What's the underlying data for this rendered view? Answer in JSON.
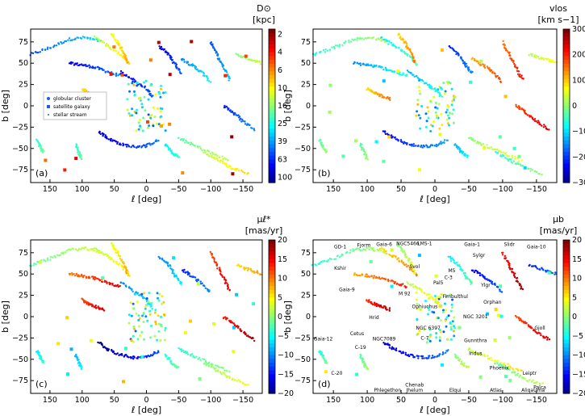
{
  "colormap": [
    "#00007f",
    "#0000ff",
    "#007fff",
    "#00ffff",
    "#7fff7f",
    "#ffff00",
    "#ff7f00",
    "#ff0000",
    "#7f0000"
  ],
  "axis_text": {
    "xlabel": "ℓ [deg]",
    "ylabel": "b [deg]"
  },
  "legend": {
    "placement": "center-left of panel (a)",
    "items": [
      {
        "label": "globular cluster",
        "marker": "circle"
      },
      {
        "label": "satellite galaxy",
        "marker": "square"
      },
      {
        "label": "stellar stream",
        "marker": "dot"
      }
    ]
  },
  "chart_data": [
    {
      "panel": "(a)",
      "type": "scatter",
      "quantity": "distance",
      "colorbar": {
        "title_line1": "D⊙",
        "title_line2": "[kpc]",
        "ticks": [
          "2",
          "4",
          "6",
          "10",
          "16",
          "25",
          "39",
          "63",
          "100"
        ],
        "scale": "log",
        "range": [
          1.3,
          100
        ]
      },
      "xlim": [
        180,
        -180
      ],
      "ylim": [
        -90,
        90
      ],
      "xticks": [
        "150",
        "100",
        "50",
        "0",
        "−50",
        "−100",
        "−150"
      ],
      "yticks": [
        "75",
        "50",
        "25",
        "0",
        "−25",
        "−50",
        "−75"
      ],
      "grid": false
    },
    {
      "panel": "(b)",
      "type": "scatter",
      "quantity": "line-of-sight velocity",
      "colorbar": {
        "title_line1": "vlos",
        "title_line2": "[km s−1]",
        "ticks": [
          "300",
          "200",
          "100",
          "0",
          "−100",
          "−200",
          "−300"
        ],
        "range": [
          -300,
          300
        ]
      },
      "xlim": [
        180,
        -180
      ],
      "ylim": [
        -90,
        90
      ],
      "xticks": [
        "150",
        "100",
        "50",
        "0",
        "−50",
        "−100",
        "−150"
      ],
      "yticks": [
        "75",
        "50",
        "25",
        "0",
        "−25",
        "−50",
        "−75"
      ],
      "grid": false
    },
    {
      "panel": "(c)",
      "type": "scatter",
      "quantity": "proper motion in l",
      "colorbar": {
        "title_line1": "μℓ*",
        "title_line2": "[mas/yr]",
        "ticks": [
          "20",
          "15",
          "10",
          "5",
          "0",
          "−5",
          "−10",
          "−15",
          "−20"
        ],
        "range": [
          -20,
          20
        ]
      },
      "xlim": [
        180,
        -180
      ],
      "ylim": [
        -90,
        90
      ],
      "xticks": [
        "150",
        "100",
        "50",
        "0",
        "−50",
        "−100",
        "−150"
      ],
      "yticks": [
        "75",
        "50",
        "25",
        "0",
        "−25",
        "−50",
        "−75"
      ],
      "grid": false
    },
    {
      "panel": "(d)",
      "type": "scatter",
      "quantity": "proper motion in b",
      "colorbar": {
        "title_line1": "μb",
        "title_line2": "[mas/yr]",
        "ticks": [
          "20",
          "15",
          "10",
          "5",
          "0",
          "−5",
          "−10",
          "−15",
          "−20"
        ],
        "range": [
          -20,
          20
        ]
      },
      "xlim": [
        180,
        -180
      ],
      "ylim": [
        -90,
        90
      ],
      "xticks": [
        "150",
        "100",
        "50",
        "0",
        "−50",
        "−100",
        "−150"
      ],
      "yticks": [
        "75",
        "50",
        "25",
        "0",
        "−25",
        "−50",
        "−75"
      ],
      "grid": false,
      "annotations": [
        {
          "text": "GD-1",
          "l": 140,
          "b": 80
        },
        {
          "text": "Fjorm",
          "l": 105,
          "b": 82
        },
        {
          "text": "Gaia-6",
          "l": 75,
          "b": 83
        },
        {
          "text": "NGC5466",
          "l": 40,
          "b": 84
        },
        {
          "text": "LMS-1",
          "l": 15,
          "b": 84
        },
        {
          "text": "Gaia-1",
          "l": -55,
          "b": 83
        },
        {
          "text": "Slidr",
          "l": -110,
          "b": 83
        },
        {
          "text": "Gaia-10",
          "l": -150,
          "b": 80
        },
        {
          "text": "Sylgr",
          "l": -65,
          "b": 70
        },
        {
          "text": "Kshir",
          "l": 140,
          "b": 55
        },
        {
          "text": "Svol",
          "l": 30,
          "b": 57
        },
        {
          "text": "M5",
          "l": -25,
          "b": 52
        },
        {
          "text": "C-3",
          "l": -20,
          "b": 44
        },
        {
          "text": "Gaia-9",
          "l": 130,
          "b": 30
        },
        {
          "text": "M 92",
          "l": 45,
          "b": 25
        },
        {
          "text": "Pal5",
          "l": -5,
          "b": 38
        },
        {
          "text": "Ylgr",
          "l": -75,
          "b": 35
        },
        {
          "text": "Fimbulthul",
          "l": -30,
          "b": 22
        },
        {
          "text": "Ophiuchus",
          "l": 15,
          "b": 10
        },
        {
          "text": "Orphan",
          "l": -85,
          "b": 15
        },
        {
          "text": "Hrid",
          "l": 90,
          "b": -3
        },
        {
          "text": "NGC 3201",
          "l": -60,
          "b": -2
        },
        {
          "text": "NGC 6397",
          "l": 10,
          "b": -15
        },
        {
          "text": "Gjoll",
          "l": -155,
          "b": -15
        },
        {
          "text": "C-7",
          "l": 15,
          "b": -27
        },
        {
          "text": "Gunnthra",
          "l": -60,
          "b": -30
        },
        {
          "text": "Gaia-12",
          "l": 165,
          "b": -28
        },
        {
          "text": "Cetus",
          "l": 115,
          "b": -22
        },
        {
          "text": "NGC7089",
          "l": 75,
          "b": -28
        },
        {
          "text": "C-19",
          "l": 110,
          "b": -38
        },
        {
          "text": "Indus",
          "l": -60,
          "b": -45
        },
        {
          "text": "C-20",
          "l": 145,
          "b": -68
        },
        {
          "text": "Phlegethon",
          "l": 70,
          "b": -88
        },
        {
          "text": "Chenab",
          "l": 30,
          "b": -82
        },
        {
          "text": "Leiptr",
          "l": -140,
          "b": -68
        },
        {
          "text": "Phoenix",
          "l": -95,
          "b": -62
        },
        {
          "text": "Jhelum",
          "l": 30,
          "b": -98
        },
        {
          "text": "Elqui",
          "l": -30,
          "b": -105
        },
        {
          "text": "Palca",
          "l": -155,
          "b": -85
        },
        {
          "text": "AliqaUma",
          "l": -145,
          "b": -92
        },
        {
          "text": "Atlas",
          "l": -90,
          "b": -108
        }
      ]
    }
  ]
}
